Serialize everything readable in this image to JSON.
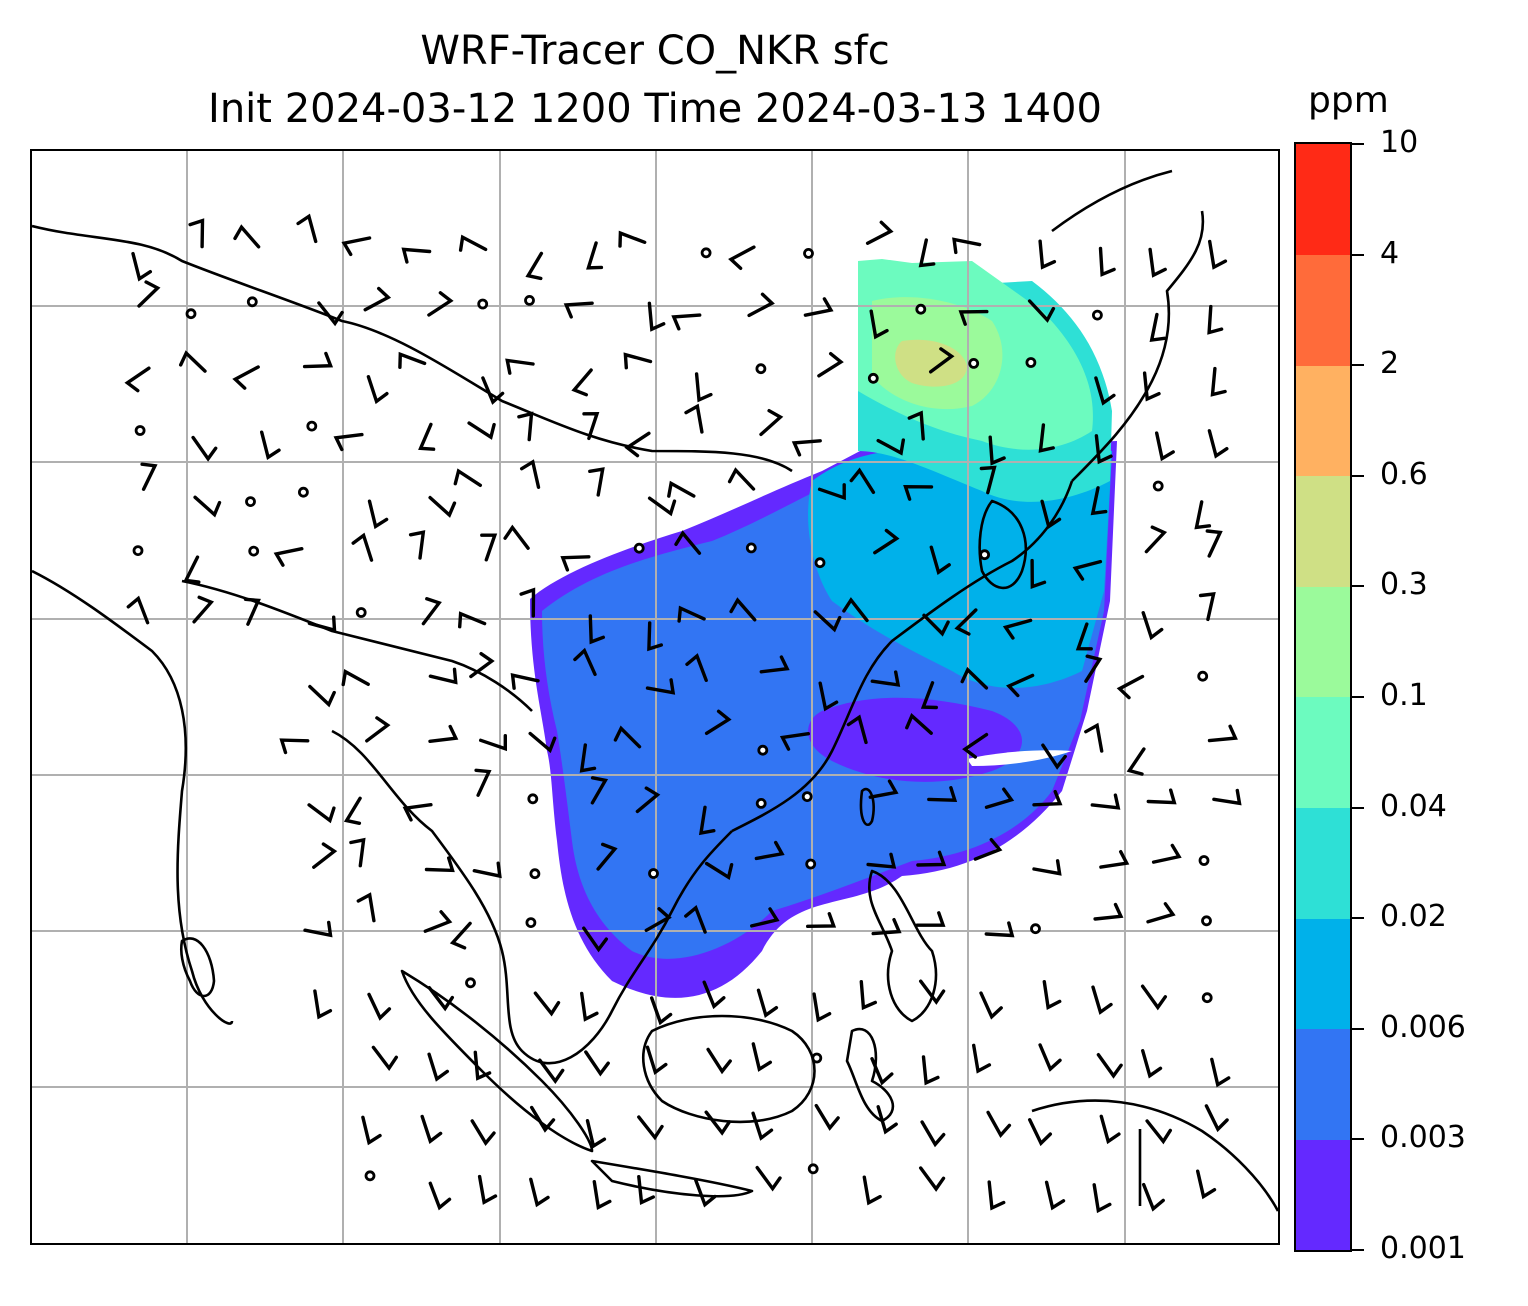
{
  "title": {
    "line1": "WRF-Tracer CO_NKR sfc",
    "line2": "Init 2024-03-12 1200 Time 2024-03-13 1400"
  },
  "colorbar": {
    "unit": "ppm",
    "levels": [
      "0.001",
      "0.003",
      "0.006",
      "0.02",
      "0.04",
      "0.1",
      "0.3",
      "0.6",
      "2",
      "4",
      "10"
    ],
    "colors": [
      "#6429ff",
      "#3275f3",
      "#00b1ea",
      "#2ee0d6",
      "#6cfbbf",
      "#9bfa9b",
      "#cfe085",
      "#ffb161",
      "#ff6b3a",
      "#ff2a16"
    ]
  },
  "map": {
    "gridlines": true,
    "coastline_color": "#000000",
    "gridline_color": "#b0b0b0",
    "wind_glyph": "wind-barb-icon",
    "calm_glyph": "calm-circle-icon"
  }
}
